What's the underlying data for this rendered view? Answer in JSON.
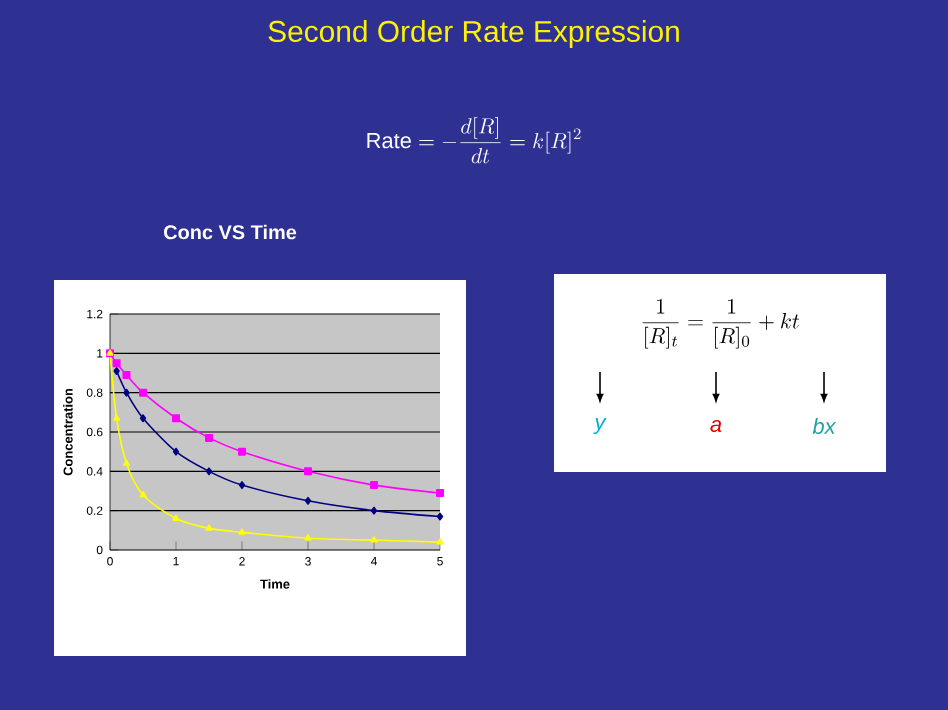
{
  "chart_data": {
    "type": "line",
    "title": "Conc VS Time",
    "subtitle": "Second Order Rate Expression",
    "xlabel": "Time",
    "ylabel": "Concentration",
    "annotations": [
      "\\mathrm{Rate}=-\\frac{d[R]}{dt}=k[R]^{2}",
      "\\frac{1}{[R]_{t}}=\\frac{1}{[R]_{0}}+kt",
      "y",
      "a",
      "bx"
    ],
    "x": [
      0,
      0.1,
      0.25,
      0.5,
      1,
      1.5,
      2,
      3,
      4,
      5
    ],
    "series": [
      {
        "color": "#000080",
        "marker": "diamond",
        "values": [
          null,
          0.91,
          0.8,
          0.67,
          0.5,
          0.4,
          0.33,
          0.25,
          0.2,
          0.17
        ]
      },
      {
        "color": "#ff00ff",
        "marker": "square",
        "values": [
          1,
          0.95,
          0.89,
          0.8,
          0.67,
          0.57,
          0.5,
          0.4,
          0.33,
          0.29
        ]
      },
      {
        "color": "#ffff00",
        "marker": "triangle",
        "values": [
          1,
          0.67,
          0.44,
          0.28,
          0.16,
          0.11,
          0.09,
          0.06,
          0.05,
          0.04
        ]
      }
    ],
    "xlim": [
      0,
      5
    ],
    "xticks": [
      0,
      1,
      2,
      3,
      4,
      5
    ],
    "ylim": [
      0,
      1.2
    ],
    "yticks": [
      0,
      0.2,
      0.4,
      0.6,
      0.8,
      1,
      1.2
    ],
    "grid": "y"
  }
}
